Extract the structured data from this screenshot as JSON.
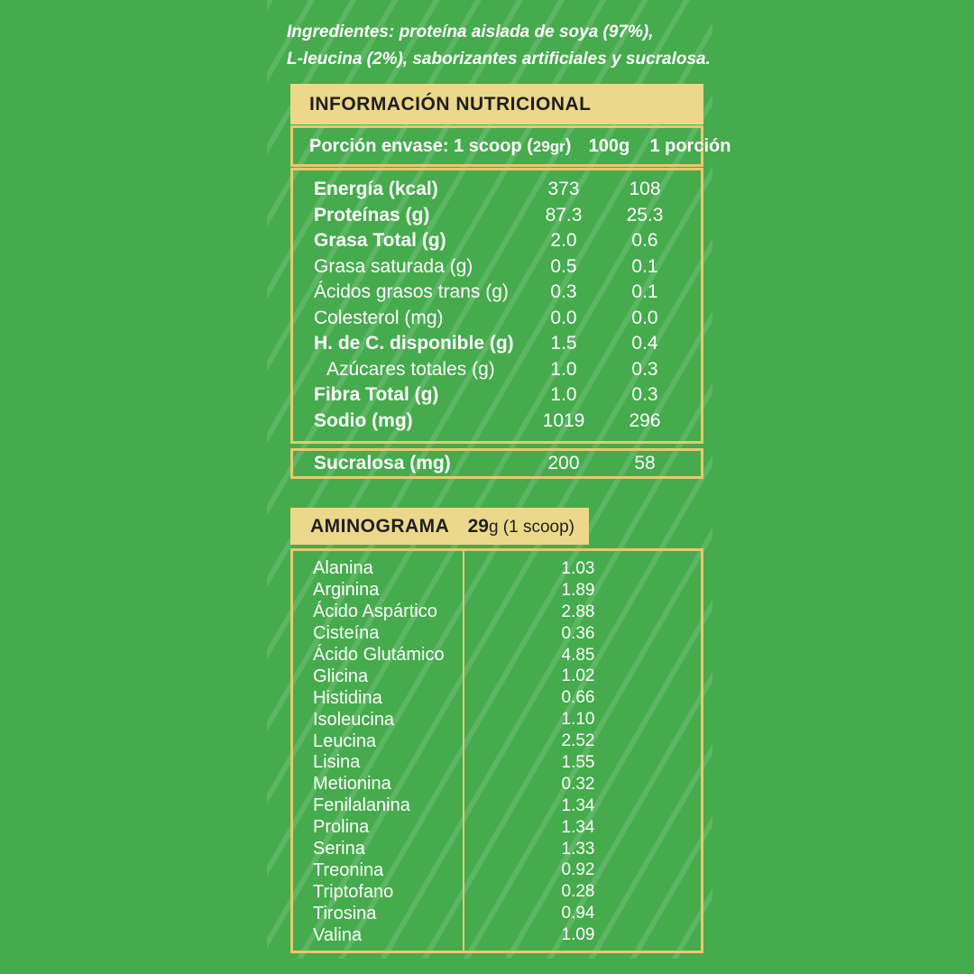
{
  "colors": {
    "green-bg": "#45ab4d",
    "tan": "#ecd88b",
    "gold": "#e9c870",
    "dark": "#1f1f1d"
  },
  "ingredients": {
    "line1": "Ingredientes: proteína aislada de soya (97%),",
    "line2": "L-leucina (2%), saborizantes artificiales y sucralosa."
  },
  "nutrition_table": {
    "title": "INFORMACIÓN NUTRICIONAL",
    "serving_prefix": "Porción envase: 1 scoop (",
    "serving_size": "29gr",
    "serving_suffix": ")",
    "col_100g": "100g",
    "col_portion": "1 porción",
    "rows": [
      {
        "label": "Energía (kcal)",
        "per100": "373",
        "portion": "108"
      },
      {
        "label": "Proteínas (g)",
        "per100": "87.3",
        "portion": "25.3"
      },
      {
        "label": "Grasa Total (g)",
        "per100": "2.0",
        "portion": "0.6"
      },
      {
        "label": "Grasa saturada (g)",
        "per100": "0.5",
        "portion": "0.1"
      },
      {
        "label": "Ácidos grasos trans (g)",
        "per100": "0.3",
        "portion": "0.1"
      },
      {
        "label": "Colesterol (mg)",
        "per100": "0.0",
        "portion": "0.0"
      },
      {
        "label": "H. de C. disponible (g)",
        "per100": "1.5",
        "portion": "0.4"
      },
      {
        "label": "Azúcares totales (g)",
        "per100": "1.0",
        "portion": "0.3"
      },
      {
        "label": "Fibra Total (g)",
        "per100": "1.0",
        "portion": "0.3"
      },
      {
        "label": "Sodio (mg)",
        "per100": "1019",
        "portion": "296"
      }
    ],
    "sucralose": {
      "label": "Sucralosa (mg)",
      "per100": "200",
      "portion": "58"
    }
  },
  "aminogram": {
    "title": "AMINOGRAMA",
    "amount_bold": "29",
    "amount_rest": "g (1 scoop)",
    "rows": [
      {
        "name": "Alanina",
        "value": "1.03"
      },
      {
        "name": "Arginina",
        "value": "1.89"
      },
      {
        "name": "Ácido Aspártico",
        "value": "2.88"
      },
      {
        "name": "Cisteína",
        "value": "0.36"
      },
      {
        "name": "Ácido Glutámico",
        "value": "4.85"
      },
      {
        "name": "Glicina",
        "value": "1.02"
      },
      {
        "name": "Histidina",
        "value": "0.66"
      },
      {
        "name": "Isoleucina",
        "value": "1.10"
      },
      {
        "name": "Leucina",
        "value": "2.52"
      },
      {
        "name": "Lisina",
        "value": "1.55"
      },
      {
        "name": "Metionina",
        "value": "0.32"
      },
      {
        "name": "Fenilalanina",
        "value": "1.34"
      },
      {
        "name": "Prolina",
        "value": "1.34"
      },
      {
        "name": "Serina",
        "value": "1.33"
      },
      {
        "name": "Treonina",
        "value": "0.92"
      },
      {
        "name": "Triptofano",
        "value": "0.28"
      },
      {
        "name": "Tirosina",
        "value": "0.94"
      },
      {
        "name": "Valina",
        "value": "1.09"
      }
    ]
  }
}
